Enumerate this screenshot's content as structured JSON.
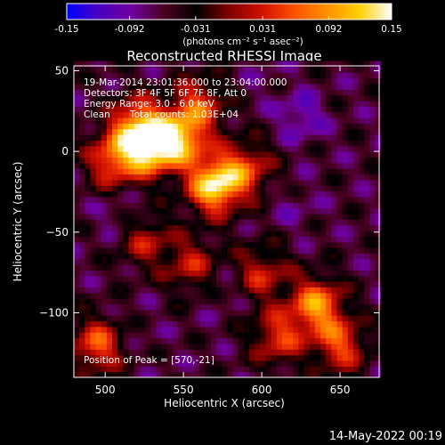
{
  "colorbar": {
    "tick_labels": [
      "-0.15",
      "-0.092",
      "-0.031",
      "0.031",
      "0.092",
      "0.15"
    ],
    "tick_values": [
      -0.15,
      -0.092,
      -0.031,
      0.031,
      0.092,
      0.15
    ],
    "range": [
      -0.15,
      0.15
    ],
    "units_label": "(photons cm⁻² s⁻¹ asec⁻²)",
    "colors": [
      "#0000ff",
      "#4a00c0",
      "#7000a0",
      "#4a0020",
      "#000000",
      "#800000",
      "#d01000",
      "#ff5000",
      "#ff9000",
      "#ffd000",
      "#ffffff"
    ]
  },
  "chart_data": {
    "type": "heatmap",
    "title": "Reconstructed RHESSI Image",
    "xlabel": "Heliocentric X (arcsec)",
    "ylabel": "Heliocentric Y (arcsec)",
    "xlim": [
      480,
      675
    ],
    "ylim": [
      -140,
      53
    ],
    "x_ticks": [
      500,
      550,
      600,
      650
    ],
    "y_ticks": [
      50,
      0,
      -50,
      -100
    ],
    "annotations": {
      "time_range": "19-Mar-2014 23:01:36.000 to 23:04:00.000",
      "detectors": "Detectors: 3F 4F 5F 6F 7F 8F, Att 0",
      "energy_range": "Energy Range: 3.0 - 6.0 keV",
      "clean_label": "Clean",
      "total_counts": "Total counts: 1.03E+04",
      "peak": "Position of Peak = [570,-21]"
    },
    "peak_position": [
      570,
      -21
    ],
    "sources": [
      {
        "x": 528,
        "y": 3,
        "intensity": 0.135
      },
      {
        "x": 548,
        "y": 8,
        "intensity": 0.11
      },
      {
        "x": 570,
        "y": -21,
        "intensity": 0.15
      },
      {
        "x": 590,
        "y": -10,
        "intensity": 0.05
      },
      {
        "x": 520,
        "y": 18,
        "intensity": 0.07
      },
      {
        "x": 505,
        "y": -5,
        "intensity": 0.07
      },
      {
        "x": 560,
        "y": 30,
        "intensity": 0.05
      },
      {
        "x": 635,
        "y": -95,
        "intensity": 0.1
      },
      {
        "x": 650,
        "y": -120,
        "intensity": 0.06
      },
      {
        "x": 610,
        "y": -115,
        "intensity": 0.05
      },
      {
        "x": 600,
        "y": -75,
        "intensity": 0.035
      },
      {
        "x": 495,
        "y": -120,
        "intensity": 0.07
      },
      {
        "x": 555,
        "y": -70,
        "intensity": 0.03
      },
      {
        "x": 525,
        "y": -55,
        "intensity": 0.025
      }
    ],
    "background_level": -0.06,
    "dips": [
      {
        "x": 625,
        "y": 22,
        "intensity": -0.11
      },
      {
        "x": 620,
        "y": -35,
        "intensity": -0.08
      },
      {
        "x": 510,
        "y": -40,
        "intensity": -0.09
      },
      {
        "x": 575,
        "y": -85,
        "intensity": -0.08
      },
      {
        "x": 520,
        "y": -110,
        "intensity": -0.07
      },
      {
        "x": 660,
        "y": -40,
        "intensity": -0.06
      },
      {
        "x": 600,
        "y": 45,
        "intensity": -0.07
      }
    ]
  },
  "footer": {
    "date": "14-May-2022 00:19"
  }
}
